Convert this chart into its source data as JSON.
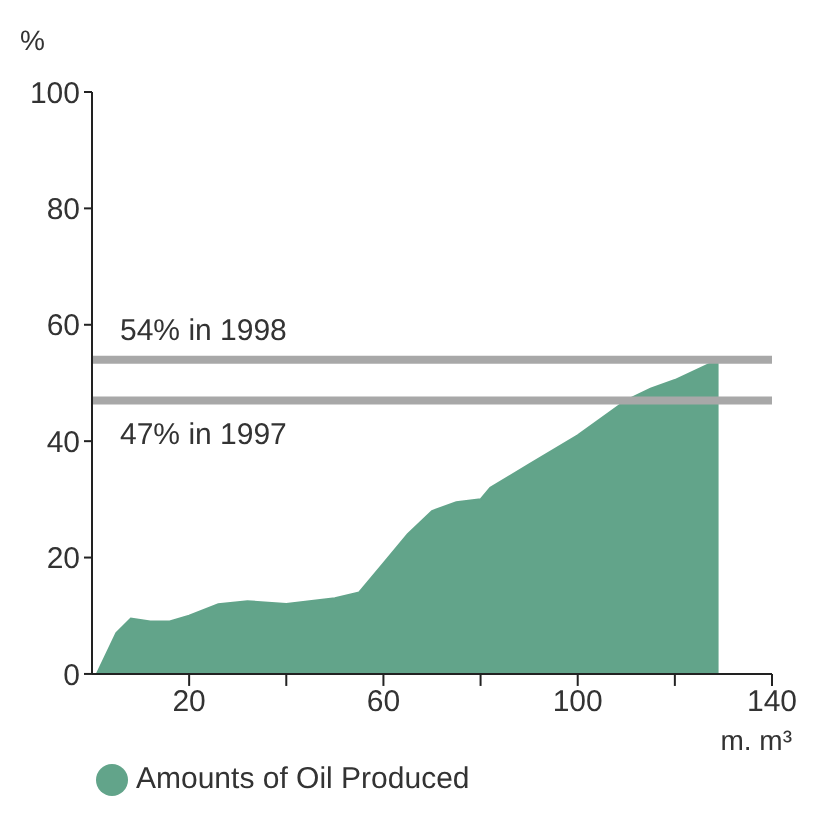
{
  "chart_data": {
    "type": "area",
    "ylabel": "%",
    "xlabel": "m. m³",
    "series": [
      {
        "name": "Amounts of Oil Produced",
        "color": "#62a48a",
        "x": [
          1,
          5,
          8,
          12,
          16,
          20,
          26,
          32,
          40,
          50,
          55,
          60,
          65,
          70,
          75,
          80,
          82,
          90,
          100,
          110,
          115,
          120,
          129
        ],
        "values": [
          0,
          7,
          9.5,
          9,
          9,
          10,
          12,
          12.5,
          12,
          13,
          14,
          19,
          24,
          28,
          29.5,
          30,
          32,
          36,
          41,
          47,
          49,
          50.5,
          54
        ]
      }
    ],
    "xlim": [
      0,
      140
    ],
    "xticks": [
      20,
      {
        "value": 40,
        "label": null
      },
      60,
      {
        "value": 80,
        "label": null
      },
      100,
      {
        "value": 120,
        "label": null
      },
      140
    ],
    "ylim": [
      0,
      100
    ],
    "yticks": [
      0,
      20,
      40,
      60,
      80,
      100
    ],
    "ref_lines": [
      {
        "axis": "y",
        "value": 54,
        "label": "54% in 1998",
        "color": "#a8a8a8"
      },
      {
        "axis": "y",
        "value": 47,
        "label": "47% in 1997",
        "color": "#a8a8a8"
      }
    ],
    "grid": false,
    "legend": "bottom"
  }
}
